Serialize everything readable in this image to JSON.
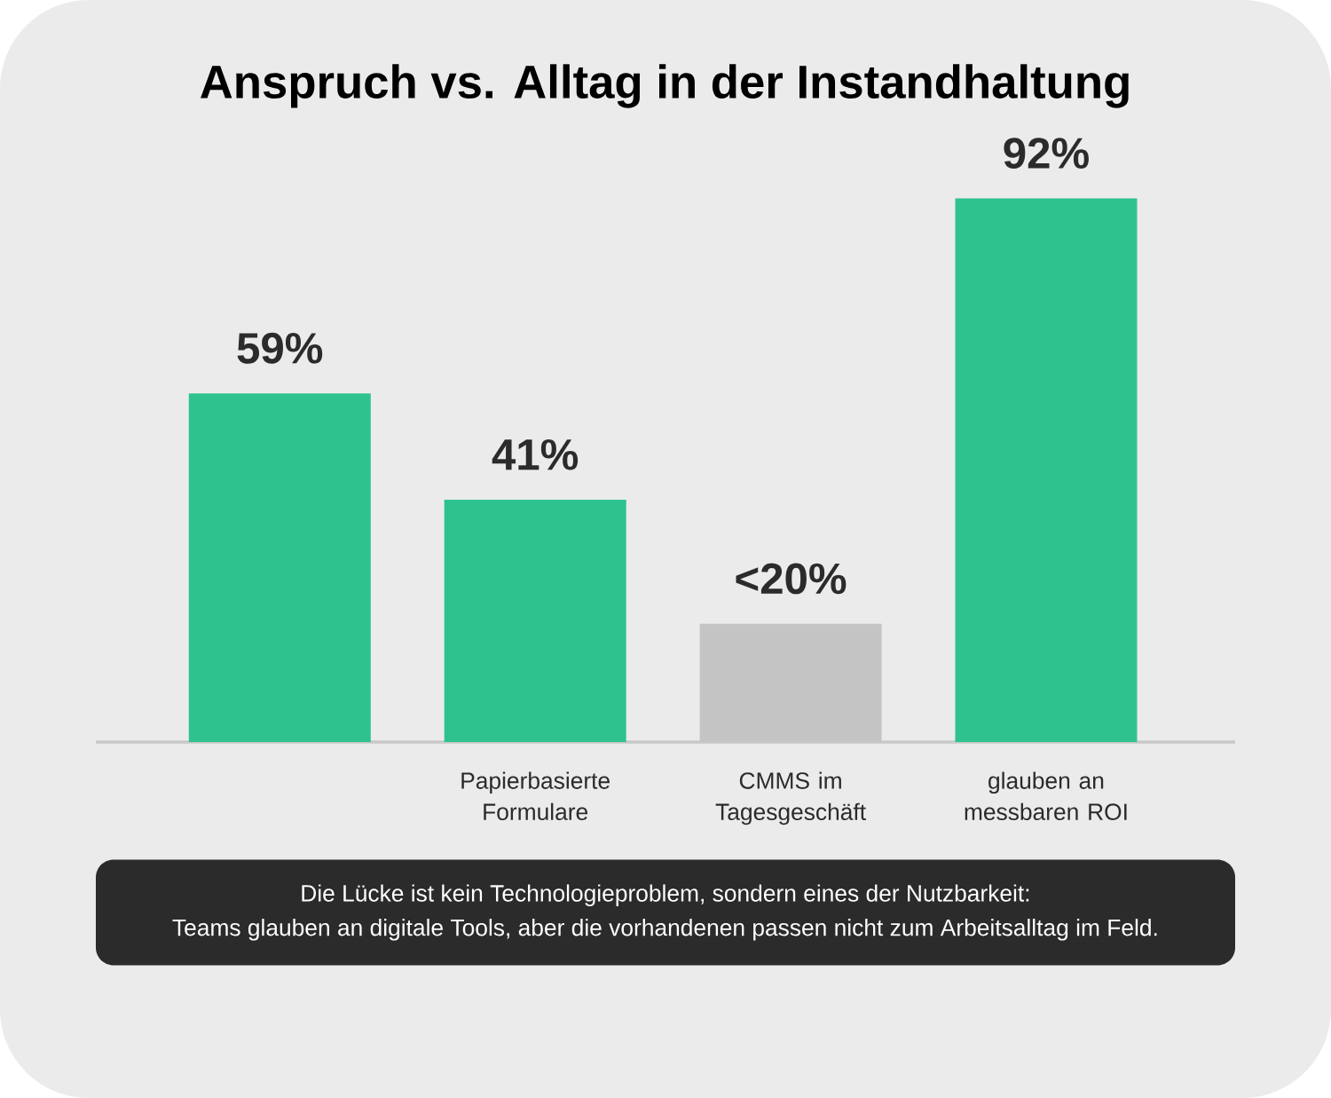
{
  "chart_data": {
    "type": "bar",
    "title": "Anspruch vs. Alltag in der Instandhaltung",
    "categories": [
      null,
      "Papierbasierte Formulare",
      "CMMS im Tagesgeschäft",
      "glauben an messbaren ROI"
    ],
    "values": [
      59,
      41,
      20,
      92
    ],
    "value_labels": [
      "59%",
      "41%",
      "<20%",
      "92%"
    ],
    "colors": [
      "#2ec28e",
      "#2ec28e",
      "#c4c4c4",
      "#2ec28e"
    ],
    "tick_labels": "x",
    "annotations": [
      "Die Lücke ist kein Technologieproblem, sondern eines der Nutzbarkeit:",
      "Teams glauben an digitale Tools, aber die vorhandenen passen nicht zum Arbeitsalltag im Feld."
    ]
  }
}
